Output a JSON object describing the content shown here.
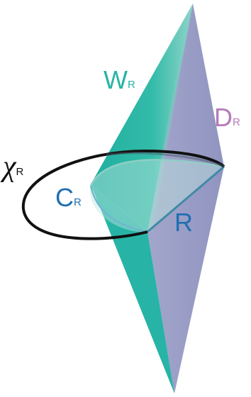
{
  "labels": {
    "w": {
      "main": "W",
      "sub": "R"
    },
    "d": {
      "main": "D",
      "sub": "R"
    },
    "chi": {
      "main": "χ",
      "sub": "R"
    },
    "c": {
      "main": "C",
      "sub": "R"
    },
    "r": {
      "main": "R"
    }
  },
  "colors": {
    "teal": "#27b4a6",
    "teal_light": "#a6dcd4",
    "lavender": "#9fa3c9",
    "purple_label": "#b57ab8",
    "blue_label": "#1f6fb3",
    "edge_blue": "#3f8aa6",
    "loop": "#111111"
  }
}
